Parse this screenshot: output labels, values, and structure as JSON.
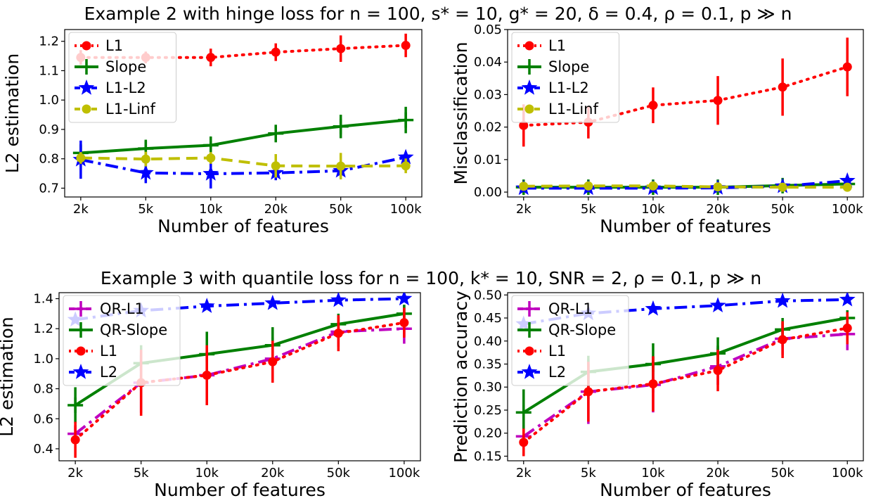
{
  "figure": {
    "title_top": "Example 2 with hinge loss for n = 100, s* = 10, g* = 20, δ = 0.4, ρ = 0.1, p ≫ n",
    "title_bottom": "Example 3 with quantile loss for n = 100, k* = 10, SNR = 2, ρ = 0.1, p ≫ n"
  },
  "chart_data": [
    {
      "type": "line",
      "title": "",
      "xlabel": "Number of features",
      "ylabel": "L2 estimation",
      "categories": [
        "2k",
        "5k",
        "10k",
        "20k",
        "50k",
        "100k"
      ],
      "ylim": [
        0.67,
        1.24
      ],
      "yticks": [
        0.7,
        0.8,
        0.9,
        1.0,
        1.1,
        1.2
      ],
      "ytick_labels": [
        "0.7",
        "0.8",
        "0.9",
        "1.0",
        "1.1",
        "1.2"
      ],
      "legend_position": "upper-left",
      "series": [
        {
          "name": "L1",
          "color": "#ff0000",
          "dash": "dot",
          "marker": "circle",
          "values": [
            1.145,
            1.145,
            1.145,
            1.163,
            1.175,
            1.186
          ],
          "errors": [
            0.025,
            0.02,
            0.03,
            0.03,
            0.045,
            0.04
          ]
        },
        {
          "name": "Slope",
          "color": "#008000",
          "dash": "solid",
          "marker": "plus",
          "values": [
            0.82,
            0.835,
            0.846,
            0.886,
            0.91,
            0.932
          ],
          "errors": [
            0.03,
            0.03,
            0.03,
            0.03,
            0.04,
            0.045
          ]
        },
        {
          "name": "L1-L2",
          "color": "#0000ff",
          "dash": "dashdot",
          "marker": "star",
          "values": [
            0.797,
            0.752,
            0.749,
            0.752,
            0.759,
            0.805
          ],
          "errors": [
            0.065,
            0.035,
            0.05,
            0.025,
            0.02,
            0.015
          ]
        },
        {
          "name": "L1-Linf",
          "color": "#bfbf00",
          "dash": "dash",
          "marker": "circle",
          "values": [
            0.803,
            0.799,
            0.803,
            0.776,
            0.775,
            0.776
          ],
          "errors": [
            0.02,
            0.025,
            0.02,
            0.04,
            0.045,
            0.025
          ]
        }
      ]
    },
    {
      "type": "line",
      "title": "",
      "xlabel": "Number of features",
      "ylabel": "Misclassification",
      "categories": [
        "2k",
        "5k",
        "10k",
        "20k",
        "50k",
        "100k"
      ],
      "ylim": [
        -0.0015,
        0.05
      ],
      "yticks": [
        0.0,
        0.01,
        0.02,
        0.03,
        0.04,
        0.05
      ],
      "ytick_labels": [
        "0.00",
        "0.01",
        "0.02",
        "0.03",
        "0.04",
        "0.05"
      ],
      "legend_position": "upper-left",
      "series": [
        {
          "name": "L1",
          "color": "#ff0000",
          "dash": "dot",
          "marker": "circle",
          "values": [
            0.0205,
            0.0215,
            0.0267,
            0.0282,
            0.0323,
            0.0385
          ],
          "errors": [
            0.0065,
            0.005,
            0.0055,
            0.0075,
            0.0088,
            0.009
          ]
        },
        {
          "name": "Slope",
          "color": "#008000",
          "dash": "solid",
          "marker": "plus",
          "values": [
            0.0015,
            0.0015,
            0.0015,
            0.0015,
            0.002,
            0.0025
          ],
          "errors": [
            0.0005,
            0.0005,
            0.0005,
            0.0005,
            0.0005,
            0.0005
          ]
        },
        {
          "name": "L1-L2",
          "color": "#0000ff",
          "dash": "dashdot",
          "marker": "star",
          "values": [
            0.0012,
            0.0012,
            0.0012,
            0.0013,
            0.0018,
            0.0035
          ],
          "errors": [
            0.0006,
            0.0006,
            0.0006,
            0.0006,
            0.0006,
            0.0008
          ]
        },
        {
          "name": "L1-Linf",
          "color": "#bfbf00",
          "dash": "dash",
          "marker": "circle",
          "values": [
            0.0018,
            0.0019,
            0.0019,
            0.0016,
            0.0015,
            0.0015
          ],
          "errors": [
            0.0005,
            0.0005,
            0.0005,
            0.0005,
            0.0005,
            0.0005
          ]
        }
      ]
    },
    {
      "type": "line",
      "title": "",
      "xlabel": "Number of features",
      "ylabel": "L2 estimation",
      "categories": [
        "2k",
        "5k",
        "10k",
        "20k",
        "50k",
        "100k"
      ],
      "ylim": [
        0.32,
        1.44
      ],
      "yticks": [
        0.4,
        0.6,
        0.8,
        1.0,
        1.2,
        1.4
      ],
      "ytick_labels": [
        "0.4",
        "0.6",
        "0.8",
        "1.0",
        "1.2",
        "1.4"
      ],
      "legend_position": "upper-left",
      "series": [
        {
          "name": "QR-L1",
          "color": "#bf00bf",
          "dash": "dashdot",
          "marker": "plus",
          "values": [
            0.5,
            0.84,
            0.89,
            1.0,
            1.18,
            1.2
          ],
          "errors": [
            0.06,
            0.2,
            0.2,
            0.14,
            0.1,
            0.1
          ]
        },
        {
          "name": "QR-Slope",
          "color": "#008000",
          "dash": "solid",
          "marker": "plus",
          "values": [
            0.69,
            0.97,
            1.03,
            1.09,
            1.23,
            1.3
          ],
          "errors": [
            0.12,
            0.12,
            0.15,
            0.12,
            0.07,
            0.06
          ]
        },
        {
          "name": "L1",
          "color": "#ff0000",
          "dash": "dot",
          "marker": "circle",
          "values": [
            0.46,
            0.84,
            0.89,
            0.98,
            1.17,
            1.24
          ],
          "errors": [
            0.12,
            0.22,
            0.2,
            0.14,
            0.12,
            0.1
          ]
        },
        {
          "name": "L2",
          "color": "#0000ff",
          "dash": "dashdot",
          "marker": "star",
          "values": [
            1.26,
            1.32,
            1.35,
            1.37,
            1.39,
            1.4
          ],
          "errors": [
            0.02,
            0.02,
            0.02,
            0.02,
            0.02,
            0.02
          ]
        }
      ]
    },
    {
      "type": "line",
      "title": "",
      "xlabel": "Number of features",
      "ylabel": "Prediction accuracy",
      "categories": [
        "2k",
        "5k",
        "10k",
        "20k",
        "50k",
        "100k"
      ],
      "ylim": [
        0.14,
        0.505
      ],
      "yticks": [
        0.15,
        0.2,
        0.25,
        0.3,
        0.35,
        0.4,
        0.45,
        0.5
      ],
      "ytick_labels": [
        "0.15",
        "0.20",
        "0.25",
        "0.30",
        "0.35",
        "0.40",
        "0.45",
        "0.50"
      ],
      "legend_position": "upper-left",
      "series": [
        {
          "name": "QR-L1",
          "color": "#bf00bf",
          "dash": "dashdot",
          "marker": "plus",
          "values": [
            0.193,
            0.29,
            0.305,
            0.345,
            0.405,
            0.415
          ],
          "errors": [
            0.025,
            0.07,
            0.06,
            0.04,
            0.035,
            0.035
          ]
        },
        {
          "name": "QR-Slope",
          "color": "#008000",
          "dash": "solid",
          "marker": "plus",
          "values": [
            0.245,
            0.333,
            0.35,
            0.373,
            0.425,
            0.45
          ],
          "errors": [
            0.05,
            0.035,
            0.045,
            0.035,
            0.025,
            0.015
          ]
        },
        {
          "name": "L1",
          "color": "#ff0000",
          "dash": "dot",
          "marker": "circle",
          "values": [
            0.18,
            0.29,
            0.307,
            0.336,
            0.403,
            0.428
          ],
          "errors": [
            0.03,
            0.065,
            0.06,
            0.045,
            0.04,
            0.035
          ]
        },
        {
          "name": "L2",
          "color": "#0000ff",
          "dash": "dashdot",
          "marker": "star",
          "values": [
            0.437,
            0.46,
            0.47,
            0.477,
            0.487,
            0.49
          ],
          "errors": [
            0.008,
            0.008,
            0.006,
            0.006,
            0.006,
            0.006
          ]
        }
      ]
    }
  ]
}
